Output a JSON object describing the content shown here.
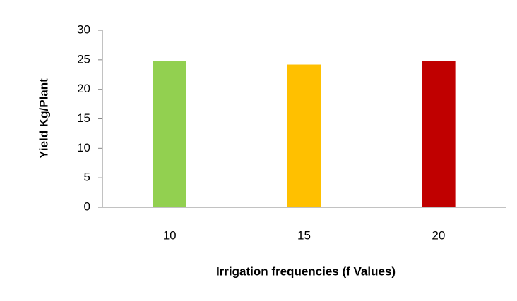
{
  "chart_data": {
    "type": "bar",
    "xlabel": "Irrigation frequencies (f Values)",
    "ylabel": "Yield  Kg/Plant",
    "categories": [
      "10",
      "15",
      "20"
    ],
    "values": [
      24.8,
      24.2,
      24.8
    ],
    "colors": [
      "#92d050",
      "#ffc000",
      "#c00000"
    ],
    "ylim": [
      0,
      30
    ],
    "yticks": [
      0,
      5,
      10,
      15,
      20,
      25,
      30
    ],
    "grid": false
  }
}
